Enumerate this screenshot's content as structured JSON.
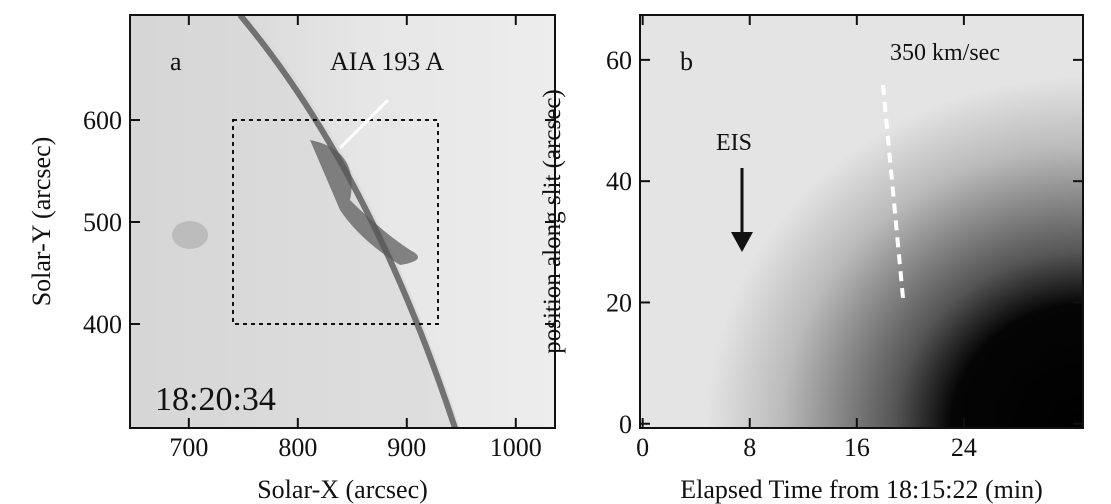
{
  "chart_data": [
    {
      "type": "image",
      "panel_label": "a",
      "annotations": [
        "AIA 193 A",
        "18:20:34"
      ],
      "x_label": "Solar-X (arcsec)",
      "y_label": "Solar-Y (arcsec)",
      "xlim": [
        646,
        1036
      ],
      "xticks": [
        700,
        800,
        900,
        1000
      ],
      "ylim": [
        298,
        703
      ],
      "yticks": [
        400,
        500,
        600
      ]
    },
    {
      "type": "image",
      "panel_label": "b",
      "annotations": [
        "EIS",
        "350 km/sec"
      ],
      "x_label": "Elapsed Time from 18:15:22 (min)",
      "y_label": "position along slit (arcsec)",
      "xlim": [
        -0.2,
        32.9
      ],
      "xticks": [
        0,
        8,
        16,
        24
      ],
      "ylim": [
        -0.7,
        67.4
      ],
      "yticks": [
        0,
        20,
        40,
        60
      ]
    }
  ]
}
